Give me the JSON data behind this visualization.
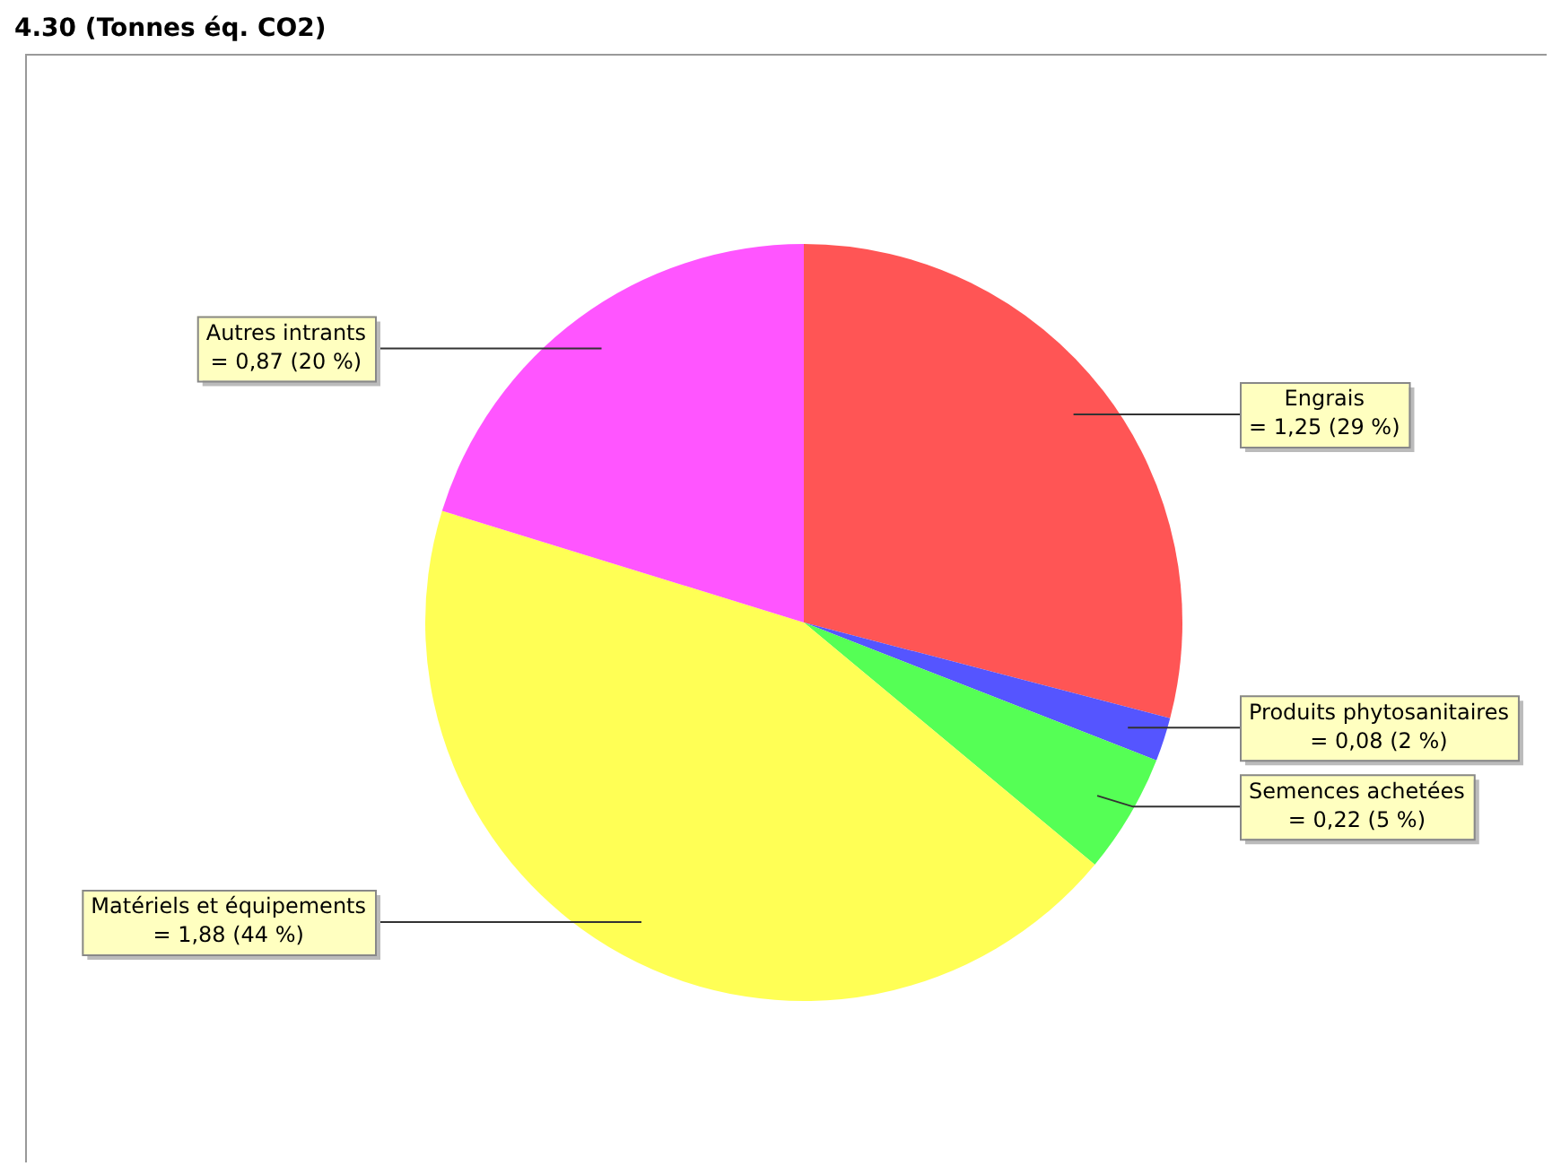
{
  "chart_data": {
    "type": "pie",
    "title": "4.30 (Tonnes éq. CO2)",
    "categories": [
      "Engrais",
      "Produits phytosanitaires",
      "Semences achetées",
      "Matériels et équipements",
      "Autres intrants"
    ],
    "values": [
      1.25,
      0.08,
      0.22,
      1.88,
      0.87
    ],
    "colors": [
      "#ff5555",
      "#5555ff",
      "#55ff55",
      "#ffff55",
      "#ff55ff"
    ],
    "value_labels": [
      "= 1,25 (29 %)",
      "= 0,08 (2 %)",
      "= 0,22 (5 %)",
      "= 1,88 (44 %)",
      "= 0,87 (20 %)"
    ],
    "legend": false
  }
}
